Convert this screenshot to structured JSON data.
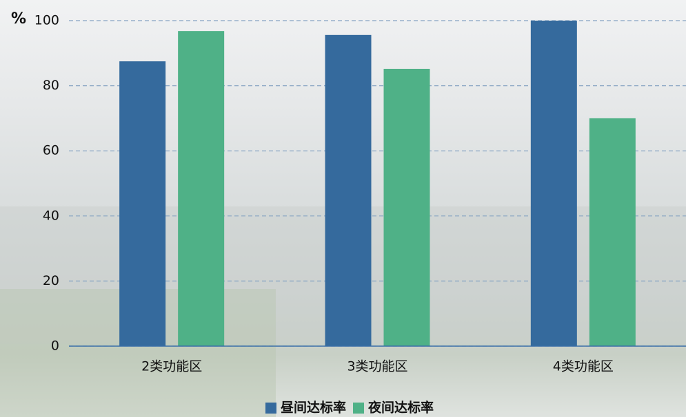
{
  "chart_data": {
    "type": "bar",
    "y_label": "%",
    "categories": [
      "2类功能区",
      "3类功能区",
      "4类功能区"
    ],
    "series": [
      {
        "name": "昼间达标率",
        "color": "#356a9d",
        "values": [
          87.5,
          95.6,
          100
        ]
      },
      {
        "name": "夜间达标率",
        "color": "#4fb187",
        "values": [
          96.8,
          85.2,
          70.0
        ]
      }
    ],
    "ylim": [
      0,
      100
    ],
    "yticks": [
      0,
      20,
      40,
      60,
      80,
      100
    ],
    "grid": true,
    "legend": "bottom"
  }
}
